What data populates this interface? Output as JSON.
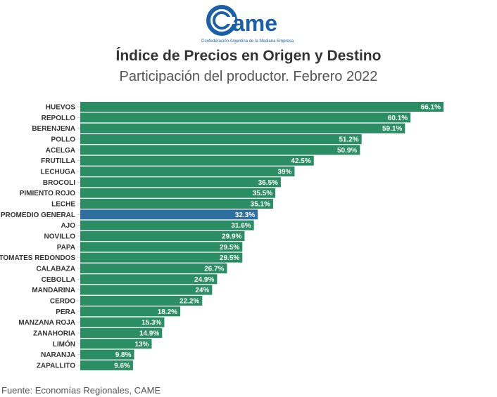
{
  "logo": {
    "text": "CAME",
    "tagline": "Confederación Argentina de la Mediana Empresa",
    "color": "#1b5fa8"
  },
  "chart_data": {
    "type": "bar",
    "orientation": "horizontal",
    "title": "Índice de Precios en Origen y Destino",
    "subtitle": "Participación del productor. Febrero 2022",
    "categories": [
      "HUEVOS",
      "REPOLLO",
      "BERENJENA",
      "POLLO",
      "ACELGA",
      "FRUTILLA",
      "LECHUGA",
      "BROCOLI",
      "PIMIENTO ROJO",
      "LECHE",
      "PROMEDIO GENERAL",
      "AJO",
      "NOVILLO",
      "PAPA",
      "TOMATES REDONDOS",
      "CALABAZA",
      "CEBOLLA",
      "MANDARINA",
      "CERDO",
      "PERA",
      "MANZANA ROJA",
      "ZANAHORIA",
      "LIMÓN",
      "NARANJA",
      "ZAPALLITO"
    ],
    "values": [
      66.1,
      60.1,
      59.1,
      51.2,
      50.9,
      42.5,
      39,
      36.5,
      35.5,
      35.1,
      32.3,
      31.6,
      29.9,
      29.5,
      29.5,
      26.7,
      24.9,
      24,
      22.2,
      18.2,
      15.3,
      14.9,
      13,
      9.8,
      9.6
    ],
    "labels": [
      "66.1%",
      "60.1%",
      "59.1%",
      "51.2%",
      "50.9%",
      "42.5%",
      "39%",
      "36.5%",
      "35.5%",
      "35.1%",
      "32.3%",
      "31.6%",
      "29.9%",
      "29.5%",
      "29.5%",
      "26.7%",
      "24.9%",
      "24%",
      "22.2%",
      "18.2%",
      "15.3%",
      "14.9%",
      "13%",
      "9.8%",
      "9.6%"
    ],
    "highlight": "PROMEDIO GENERAL",
    "colors": {
      "bar": "#2a8d63",
      "highlight": "#2f6fa0"
    },
    "xlim": [
      0,
      70
    ],
    "grid": false,
    "source": "Fuente: Economías Regionales, CAME"
  }
}
